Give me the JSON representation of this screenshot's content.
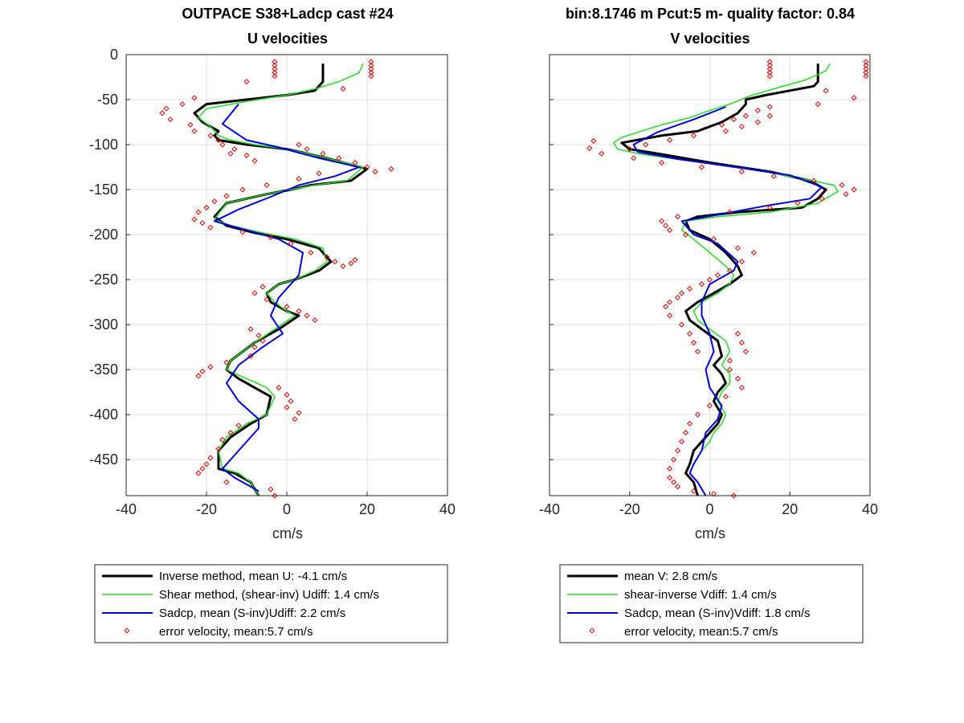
{
  "figure": {
    "left_title_line1": "OUTPACE S38+Ladcp cast #24",
    "left_title_line2": "U velocities",
    "right_title_line1": "bin:8.1746 m  Pcut:5 m- quality factor:  0.84",
    "right_title_line2": "V velocities"
  },
  "colors": {
    "inverse": "#000000",
    "shear": "#22dd22",
    "sadcp": "#0000dd",
    "error": "#dd0000",
    "grid": "#e0e0e0",
    "axes": "#262626"
  },
  "chart_data": [
    {
      "type": "line",
      "title": "U velocities",
      "xlabel": "cm/s",
      "ylabel": "",
      "xlim": [
        -40,
        40
      ],
      "ylim": [
        -490,
        0
      ],
      "xticks": [
        "-40",
        "-20",
        "0",
        "20",
        "40"
      ],
      "yticks": [
        "0",
        "-50",
        "-100",
        "-150",
        "-200",
        "-250",
        "-300",
        "-350",
        "-400",
        "-450"
      ],
      "grid": true,
      "legend_position": "below",
      "legend": [
        "Inverse method, mean U:  -4.1 cm/s",
        "Shear method, (shear-inv)  Udiff:  1.4 cm/s",
        "Sadcp, mean (S-inv)Udiff: 2.2 cm/s",
        "error velocity, mean:5.7 cm/s"
      ],
      "series": [
        {
          "name": "Inverse method",
          "x": [
            9,
            9,
            7,
            0,
            -10,
            -20,
            -23,
            -21,
            -17,
            -18,
            -17,
            -10,
            0,
            10,
            20,
            16,
            6,
            1,
            -5,
            -15,
            -18,
            -15,
            -8,
            0,
            8,
            11,
            8,
            2,
            -2,
            -5,
            -4,
            0,
            3,
            -2,
            -8,
            -14,
            -15,
            -12,
            -8,
            -4,
            -5,
            -9,
            -14,
            -17,
            -17,
            -13,
            -9,
            -7
          ],
          "y": [
            -10,
            -30,
            -40,
            -45,
            -50,
            -55,
            -65,
            -75,
            -85,
            -90,
            -95,
            -100,
            -105,
            -115,
            -127,
            -140,
            -145,
            -150,
            -155,
            -165,
            -180,
            -190,
            -198,
            -205,
            -215,
            -230,
            -240,
            -250,
            -255,
            -265,
            -275,
            -285,
            -290,
            -305,
            -320,
            -340,
            -350,
            -360,
            -370,
            -380,
            -400,
            -410,
            -425,
            -440,
            -460,
            -465,
            -475,
            -490
          ]
        },
        {
          "name": "Shear method",
          "x": [
            19,
            18,
            13,
            7,
            0,
            -10,
            -20,
            -22,
            -19,
            -17,
            -14,
            -8,
            0,
            10,
            19,
            15,
            7,
            1,
            -5,
            -15,
            -18,
            -14,
            -6,
            2,
            9,
            10,
            7,
            2,
            -2,
            -5,
            -3,
            0,
            2,
            -3,
            -8,
            -14,
            -15,
            -10,
            -5,
            -3,
            -5,
            -10,
            -15,
            -17,
            -16,
            -12,
            -9,
            -7
          ],
          "y": [
            -10,
            -20,
            -30,
            -38,
            -45,
            -52,
            -60,
            -70,
            -80,
            -90,
            -95,
            -100,
            -105,
            -115,
            -125,
            -140,
            -145,
            -150,
            -155,
            -165,
            -183,
            -190,
            -198,
            -205,
            -215,
            -230,
            -240,
            -250,
            -255,
            -265,
            -275,
            -285,
            -290,
            -305,
            -320,
            -340,
            -350,
            -360,
            -370,
            -380,
            -400,
            -410,
            -425,
            -440,
            -460,
            -465,
            -475,
            -490
          ]
        },
        {
          "name": "Sadcp",
          "x": [
            -12,
            -16,
            -10,
            -2,
            8,
            18,
            12,
            3,
            -4,
            -12,
            -18,
            -10,
            -2,
            4,
            3,
            1,
            -2,
            -4,
            -1,
            -6,
            -12,
            -15,
            -12,
            -7,
            -7,
            -12,
            -16,
            -13,
            -7
          ],
          "y": [
            -55,
            -77,
            -95,
            -103,
            -115,
            -125,
            -135,
            -145,
            -158,
            -172,
            -185,
            -195,
            -205,
            -220,
            -245,
            -255,
            -270,
            -290,
            -310,
            -325,
            -345,
            -365,
            -385,
            -405,
            -415,
            -440,
            -460,
            -470,
            -485
          ]
        },
        {
          "name": "error velocity",
          "kind": "markers",
          "x": [
            -3,
            -3,
            -3,
            -3,
            -3,
            21,
            21,
            21,
            21,
            21,
            -10,
            14,
            -23,
            -26,
            -30,
            -31,
            -29,
            -24,
            -23,
            -19,
            -17,
            -16,
            -13,
            -14,
            -10,
            -8,
            3,
            5,
            9,
            13,
            17,
            20,
            22,
            26,
            8,
            3,
            -5,
            -11,
            -15,
            -18,
            -20,
            -22,
            -23,
            -21,
            -19,
            -11,
            -4,
            1,
            6,
            10,
            12,
            14,
            17,
            16,
            -6,
            -8,
            -5,
            0,
            3,
            5,
            7,
            -9,
            -7,
            -6,
            -8,
            -9,
            -15,
            -19,
            -21,
            -22,
            -2,
            0,
            1,
            0,
            3,
            2,
            -12,
            -14,
            -16,
            -17,
            -19,
            -20,
            -21,
            -22,
            -15,
            -4,
            -3
          ],
          "y": [
            -8,
            -12,
            -16,
            -20,
            -24,
            -8,
            -12,
            -16,
            -20,
            -24,
            -30,
            -38,
            -48,
            -55,
            -60,
            -65,
            -72,
            -78,
            -85,
            -90,
            -95,
            -100,
            -105,
            -110,
            -112,
            -118,
            -100,
            -105,
            -110,
            -115,
            -120,
            -125,
            -130,
            -127,
            -132,
            -138,
            -145,
            -150,
            -157,
            -163,
            -170,
            -175,
            -183,
            -187,
            -192,
            -197,
            -203,
            -210,
            -220,
            -225,
            -230,
            -235,
            -228,
            -232,
            -258,
            -265,
            -272,
            -280,
            -285,
            -290,
            -295,
            -305,
            -312,
            -318,
            -325,
            -335,
            -342,
            -347,
            -352,
            -357,
            -370,
            -378,
            -385,
            -392,
            -398,
            -405,
            -412,
            -420,
            -428,
            -438,
            -448,
            -455,
            -460,
            -465,
            -475,
            -483,
            -490
          ]
        }
      ]
    },
    {
      "type": "line",
      "title": "V velocities",
      "xlabel": "cm/s",
      "ylabel": "",
      "xlim": [
        -40,
        40
      ],
      "ylim": [
        -490,
        0
      ],
      "xticks": [
        "-40",
        "-20",
        "0",
        "20",
        "40"
      ],
      "yticks": [
        "0",
        "-50",
        "-100",
        "-150",
        "-200",
        "-250",
        "-300",
        "-350",
        "-400",
        "-450"
      ],
      "grid": true,
      "legend_position": "below",
      "legend": [
        "mean V:  2.8 cm/s",
        "shear-inverse Vdiff:  1.4 cm/s",
        "Sadcp, mean (S-inv)Vdiff: 1.8 cm/s",
        "error velocity, mean:5.7 cm/s"
      ],
      "series": [
        {
          "name": "mean V",
          "x": [
            27,
            27,
            26,
            20,
            14,
            9,
            9,
            7,
            3,
            -3,
            -12,
            -22,
            -20,
            -13,
            0,
            15,
            25,
            29,
            27,
            23,
            7,
            -3,
            -6,
            -5,
            0,
            4,
            7,
            8,
            5,
            1,
            -3,
            -6,
            -5,
            -2,
            2,
            3,
            1,
            3,
            4,
            2,
            1,
            3,
            2,
            0,
            -2,
            -4,
            -5,
            -6,
            -4,
            -3
          ],
          "y": [
            -10,
            -30,
            -35,
            -40,
            -45,
            -50,
            -55,
            -65,
            -75,
            -85,
            -90,
            -98,
            -105,
            -110,
            -120,
            -130,
            -140,
            -150,
            -160,
            -170,
            -175,
            -180,
            -185,
            -195,
            -205,
            -220,
            -235,
            -245,
            -255,
            -265,
            -275,
            -285,
            -295,
            -305,
            -318,
            -335,
            -345,
            -355,
            -365,
            -375,
            -385,
            -400,
            -410,
            -420,
            -430,
            -440,
            -455,
            -465,
            -475,
            -490
          ]
        },
        {
          "name": "shear-inverse Vdiff",
          "x": [
            30,
            29,
            24,
            16,
            10,
            5,
            0,
            -5,
            -12,
            -17,
            -22,
            -24,
            -23,
            -18,
            -5,
            10,
            22,
            31,
            32,
            27,
            15,
            2,
            -6,
            -7,
            -4,
            0,
            4,
            6,
            5,
            2,
            -2,
            -4,
            -3,
            0,
            4,
            5,
            3,
            5,
            5,
            3,
            2,
            4,
            3,
            1,
            0,
            -2,
            -4,
            -5,
            -3,
            -1
          ],
          "y": [
            -10,
            -18,
            -28,
            -38,
            -46,
            -55,
            -62,
            -70,
            -78,
            -85,
            -92,
            -98,
            -105,
            -110,
            -118,
            -127,
            -137,
            -145,
            -152,
            -165,
            -175,
            -180,
            -185,
            -195,
            -205,
            -220,
            -235,
            -245,
            -255,
            -265,
            -275,
            -285,
            -295,
            -305,
            -318,
            -330,
            -345,
            -355,
            -365,
            -375,
            -385,
            -400,
            -410,
            -420,
            -430,
            -440,
            -455,
            -465,
            -475,
            -490
          ]
        },
        {
          "name": "Sadcp",
          "x": [
            4,
            -4,
            -13,
            -19,
            -18,
            -8,
            8,
            20,
            28,
            25,
            14,
            2,
            -7,
            -4,
            2,
            7,
            6,
            0,
            -2,
            -2,
            0,
            1,
            -1,
            0,
            3,
            2,
            -1,
            -2,
            -4,
            -5,
            -3,
            -1
          ],
          "y": [
            -58,
            -72,
            -86,
            -100,
            -108,
            -116,
            -126,
            -134,
            -147,
            -160,
            -168,
            -178,
            -185,
            -200,
            -210,
            -230,
            -240,
            -255,
            -275,
            -290,
            -310,
            -330,
            -350,
            -370,
            -390,
            -405,
            -420,
            -440,
            -455,
            -465,
            -475,
            -490
          ]
        },
        {
          "name": "error velocity",
          "kind": "markers",
          "x": [
            15,
            15,
            15,
            15,
            15,
            39,
            39,
            39,
            39,
            39,
            29,
            36,
            27,
            15,
            12,
            9,
            6,
            3,
            15,
            12,
            8,
            4,
            -4,
            -10,
            -16,
            -20,
            -29,
            -30,
            -27,
            -19,
            -12,
            -2,
            8,
            16,
            26,
            33,
            36,
            34,
            28,
            22,
            15,
            5,
            -8,
            -12,
            -11,
            -10,
            -6,
            1,
            7,
            11,
            8,
            5,
            2,
            0,
            -2,
            -5,
            -7,
            -8,
            -10,
            -11,
            -10,
            -7,
            -5,
            -4,
            -3,
            7,
            8,
            9,
            5,
            5,
            7,
            8,
            4,
            0,
            -3,
            -5,
            -6,
            -7,
            -8,
            -9,
            -10,
            -10,
            -9,
            -8,
            -4,
            1,
            6
          ],
          "y": [
            -8,
            -12,
            -16,
            -20,
            -24,
            -8,
            -12,
            -16,
            -20,
            -24,
            -40,
            -48,
            -55,
            -58,
            -62,
            -68,
            -72,
            -78,
            -68,
            -75,
            -80,
            -85,
            -90,
            -95,
            -100,
            -105,
            -96,
            -104,
            -110,
            -115,
            -120,
            -125,
            -130,
            -135,
            -140,
            -145,
            -150,
            -155,
            -160,
            -165,
            -170,
            -175,
            -180,
            -185,
            -190,
            -195,
            -200,
            -205,
            -215,
            -220,
            -230,
            -240,
            -245,
            -250,
            -255,
            -260,
            -265,
            -270,
            -275,
            -280,
            -290,
            -300,
            -310,
            -320,
            -330,
            -310,
            -320,
            -330,
            -340,
            -350,
            -360,
            -370,
            -380,
            -390,
            -400,
            -410,
            -420,
            -430,
            -440,
            -450,
            -460,
            -470,
            -475,
            -480,
            -485,
            -488,
            -490
          ]
        }
      ]
    }
  ]
}
